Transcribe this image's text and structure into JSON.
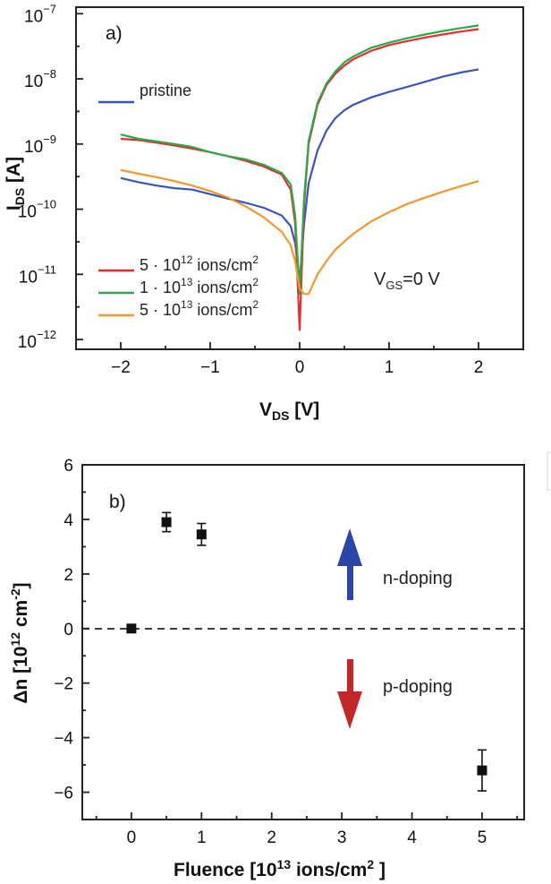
{
  "chart_data": [
    {
      "type": "line",
      "panel_label": "a)",
      "xlabel": {
        "main": "V",
        "sub": "DS",
        "unit": " [V]"
      },
      "ylabel": {
        "main": "I",
        "sub": "DS",
        "unit": " [A]"
      },
      "xlim": [
        -2.5,
        2.5
      ],
      "ylim_log10": [
        -12.15,
        -6.9
      ],
      "yscale": "log",
      "xticks": [
        -2,
        -1,
        0,
        1,
        2
      ],
      "xtick_labels": [
        "−2",
        "−1",
        "0",
        "1",
        "2"
      ],
      "yticks_exp": [
        -12,
        -11,
        -10,
        -9,
        -8,
        -7
      ],
      "ytick_base": "10",
      "ytick_exps": [
        "−12",
        "−11",
        "−10",
        "−9",
        "−8",
        "−7"
      ],
      "annotation": {
        "main": "V",
        "sub": "GS",
        "rest": "=0 V"
      },
      "series": [
        {
          "name": "pristine",
          "legend": {
            "main": "pristine",
            "sup": "",
            "unit": ""
          },
          "color": "#3b55b5",
          "x": [
            -2,
            -1.8,
            -1.6,
            -1.4,
            -1.2,
            -1.0,
            -0.8,
            -0.6,
            -0.4,
            -0.2,
            -0.1,
            -0.05,
            0,
            0.05,
            0.1,
            0.2,
            0.3,
            0.4,
            0.5,
            0.6,
            0.8,
            1.0,
            1.2,
            1.4,
            1.6,
            1.8,
            2.0
          ],
          "y": [
            3e-10,
            2.6e-10,
            2.3e-10,
            2.1e-10,
            2e-10,
            1.7e-10,
            1.45e-10,
            1.25e-10,
            1.05e-10,
            8e-11,
            5.5e-11,
            3e-11,
            8e-12,
            6e-11,
            2.5e-10,
            8e-10,
            1.6e-09,
            2.5e-09,
            3.3e-09,
            4e-09,
            5.2e-09,
            6.3e-09,
            7.5e-09,
            9e-09,
            1.08e-08,
            1.25e-08,
            1.4e-08
          ]
        },
        {
          "name": "5 · 10^12 ions/cm^2",
          "legend": {
            "main": "5 · 10",
            "sup": "12",
            "unit": " ions/cm",
            "unit_sup": "2"
          },
          "color": "#e03030",
          "x": [
            -2,
            -1.8,
            -1.6,
            -1.4,
            -1.2,
            -1.0,
            -0.8,
            -0.6,
            -0.4,
            -0.2,
            -0.1,
            -0.05,
            0,
            0.05,
            0.1,
            0.2,
            0.3,
            0.4,
            0.5,
            0.6,
            0.8,
            1.0,
            1.2,
            1.4,
            1.6,
            1.8,
            2.0
          ],
          "y": [
            1.2e-09,
            1.15e-09,
            1.05e-09,
            9.5e-10,
            8.5e-10,
            7.5e-10,
            6.5e-10,
            5.5e-10,
            4.5e-10,
            3.4e-10,
            2e-10,
            6e-11,
            1.4e-12,
            1.2e-10,
            1e-09,
            4e-09,
            8e-09,
            1.2e-08,
            1.6e-08,
            2e-08,
            2.7e-08,
            3.3e-08,
            3.8e-08,
            4.3e-08,
            4.8e-08,
            5.3e-08,
            5.8e-08
          ]
        },
        {
          "name": "1 · 10^13 ions/cm^2",
          "legend": {
            "main": "1 · 10",
            "sup": "13",
            "unit": " ions/cm",
            "unit_sup": "2"
          },
          "color": "#2ea84a",
          "x": [
            -2,
            -1.8,
            -1.6,
            -1.4,
            -1.2,
            -1.0,
            -0.8,
            -0.6,
            -0.4,
            -0.2,
            -0.1,
            -0.05,
            0,
            0.05,
            0.1,
            0.2,
            0.3,
            0.4,
            0.5,
            0.6,
            0.8,
            1.0,
            1.2,
            1.4,
            1.6,
            1.8,
            2.0
          ],
          "y": [
            1.4e-09,
            1.2e-09,
            1.1e-09,
            1e-09,
            9e-10,
            7.5e-10,
            6.5e-10,
            5.8e-10,
            4.8e-10,
            3.6e-10,
            2.4e-10,
            8e-11,
            5e-12,
            1.5e-10,
            1.1e-09,
            4.3e-09,
            8.5e-09,
            1.3e-08,
            1.8e-08,
            2.2e-08,
            3e-08,
            3.6e-08,
            4.2e-08,
            4.8e-08,
            5.4e-08,
            6e-08,
            6.6e-08
          ]
        },
        {
          "name": "5 · 10^13 ions/cm^2",
          "legend": {
            "main": "5 · 10",
            "sup": "13",
            "unit": " ions/cm",
            "unit_sup": "2"
          },
          "color": "#f2962e",
          "x": [
            -2,
            -1.8,
            -1.6,
            -1.4,
            -1.2,
            -1.0,
            -0.8,
            -0.6,
            -0.4,
            -0.2,
            -0.1,
            -0.05,
            0,
            0.05,
            0.1,
            0.2,
            0.3,
            0.4,
            0.5,
            0.6,
            0.8,
            1.0,
            1.2,
            1.4,
            1.6,
            1.8,
            2.0
          ],
          "y": [
            4e-10,
            3.5e-10,
            3.1e-10,
            2.7e-10,
            2.3e-10,
            1.9e-10,
            1.5e-10,
            1.1e-10,
            7.5e-11,
            4.5e-11,
            2.8e-11,
            1.6e-11,
            6e-12,
            5e-12,
            5e-12,
            1e-11,
            1.6e-11,
            2.4e-11,
            3.2e-11,
            4.2e-11,
            6.5e-11,
            9e-11,
            1.2e-10,
            1.5e-10,
            1.85e-10,
            2.25e-10,
            2.7e-10
          ]
        }
      ]
    },
    {
      "type": "scatter",
      "panel_label": "b)",
      "xlabel": {
        "main": "Fluence [10",
        "sup": "13",
        "unit": " ions/cm",
        "unit_sup": "2",
        "end": " ]"
      },
      "ylabel": {
        "main": "Δn [10",
        "sup": "12",
        "unit": " cm",
        "unit_sup": "-2",
        "end": "]"
      },
      "xlim": [
        -0.7,
        5.6
      ],
      "ylim": [
        -7,
        6
      ],
      "xticks": [
        0,
        1,
        2,
        3,
        4,
        5
      ],
      "xtick_labels": [
        "0",
        "1",
        "2",
        "3",
        "4",
        "5"
      ],
      "yticks": [
        -6,
        -4,
        -2,
        0,
        2,
        4,
        6
      ],
      "ytick_labels": [
        "−6",
        "−4",
        "−2",
        "0",
        "2",
        "4",
        "6"
      ],
      "x": [
        0,
        0.5,
        1,
        5
      ],
      "y": [
        0,
        3.9,
        3.45,
        -5.2
      ],
      "yerr": [
        0,
        0.35,
        0.4,
        0.75
      ],
      "reference_line": 0,
      "annotations": [
        {
          "text": "n-doping",
          "arrow": "up",
          "color": "#2b45a8"
        },
        {
          "text": "p-doping",
          "arrow": "down",
          "color": "#c0282a"
        }
      ]
    }
  ]
}
